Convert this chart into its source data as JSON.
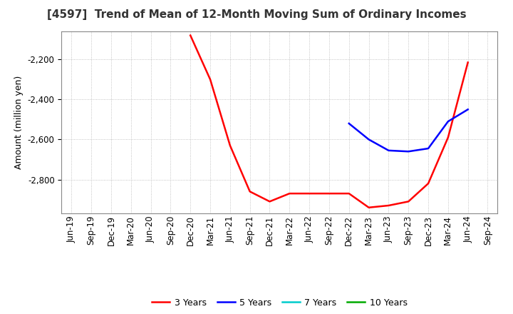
{
  "title": "[4597]  Trend of Mean of 12-Month Moving Sum of Ordinary Incomes",
  "ylabel": "Amount (million yen)",
  "background_color": "#ffffff",
  "plot_bg_color": "#ffffff",
  "grid_color": "#aaaaaa",
  "ylim": [
    -2970,
    -2060
  ],
  "yticks": [
    -2800,
    -2600,
    -2400,
    -2200
  ],
  "legend": [
    "3 Years",
    "5 Years",
    "7 Years",
    "10 Years"
  ],
  "legend_colors": [
    "#ff0000",
    "#0000ff",
    "#00cccc",
    "#00aa00"
  ],
  "series_3y": {
    "dates": [
      "Dec-20",
      "Mar-21",
      "Jun-21",
      "Sep-21",
      "Dec-21",
      "Mar-22",
      "Jun-22",
      "Sep-22",
      "Dec-22",
      "Mar-23",
      "Jun-23",
      "Sep-23",
      "Dec-23",
      "Mar-24",
      "Jun-24"
    ],
    "values": [
      -2080,
      -2300,
      -2630,
      -2860,
      -2910,
      -2870,
      -2870,
      -2870,
      -2870,
      -2940,
      -2930,
      -2910,
      -2820,
      -2590,
      -2215
    ]
  },
  "series_5y": {
    "dates": [
      "Dec-22",
      "Mar-23",
      "Jun-23",
      "Sep-23",
      "Dec-23",
      "Mar-24",
      "Jun-24"
    ],
    "values": [
      -2520,
      -2600,
      -2655,
      -2660,
      -2645,
      -2510,
      -2450
    ]
  },
  "series_7y": {
    "dates": [],
    "values": []
  },
  "series_10y": {
    "dates": [],
    "values": []
  },
  "xticklabels": [
    "Jun-19",
    "Sep-19",
    "Dec-19",
    "Mar-20",
    "Jun-20",
    "Sep-20",
    "Dec-20",
    "Mar-21",
    "Jun-21",
    "Sep-21",
    "Dec-21",
    "Mar-22",
    "Jun-22",
    "Sep-22",
    "Dec-22",
    "Mar-23",
    "Jun-23",
    "Sep-23",
    "Dec-23",
    "Mar-24",
    "Jun-24",
    "Sep-24"
  ],
  "title_fontsize": 11,
  "label_fontsize": 9,
  "tick_fontsize": 8.5
}
